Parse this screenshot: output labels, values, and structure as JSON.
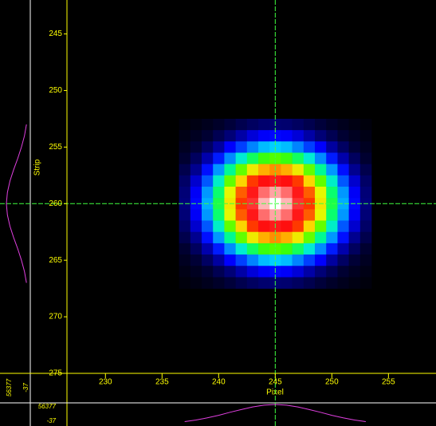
{
  "chart_data": {
    "type": "heatmap",
    "xlabel": "Pixel",
    "ylabel": "Strip",
    "x": [
      237,
      238,
      239,
      240,
      241,
      242,
      243,
      244,
      245,
      246,
      247,
      248,
      249,
      250,
      251,
      252,
      253
    ],
    "y": [
      253,
      254,
      255,
      256,
      257,
      258,
      259,
      260,
      261,
      262,
      263,
      264,
      265,
      266,
      267
    ],
    "z": [
      [
        1000,
        1600,
        2400,
        3400,
        4500,
        5500,
        6400,
        7100,
        7300,
        7100,
        6400,
        5500,
        4500,
        3400,
        2400,
        1600,
        1000
      ],
      [
        1700,
        2700,
        4100,
        5700,
        7500,
        9200,
        10800,
        11900,
        12300,
        11900,
        10800,
        9200,
        7500,
        5700,
        4100,
        2700,
        1700
      ],
      [
        2700,
        4300,
        6500,
        9000,
        12000,
        14700,
        17200,
        19000,
        19600,
        19000,
        17200,
        14700,
        12000,
        9000,
        6500,
        4300,
        2700
      ],
      [
        4000,
        6300,
        9400,
        13200,
        17400,
        21500,
        25200,
        27700,
        28600,
        27700,
        25200,
        21500,
        17400,
        13200,
        9400,
        6300,
        4000
      ],
      [
        5400,
        8500,
        12700,
        17800,
        23500,
        29000,
        34000,
        37400,
        38600,
        37400,
        34000,
        29000,
        23500,
        17800,
        12700,
        8500,
        5400
      ],
      [
        6700,
        10500,
        15700,
        21900,
        29000,
        35700,
        41900,
        46200,
        47600,
        46200,
        41900,
        35700,
        29000,
        21900,
        15700,
        10500,
        6700
      ],
      [
        7500,
        11800,
        17800,
        24700,
        32800,
        40400,
        47300,
        52200,
        53800,
        52200,
        47300,
        40400,
        32800,
        24700,
        17800,
        11800,
        7500
      ],
      [
        7800,
        12300,
        18500,
        25800,
        34200,
        42000,
        49300,
        54300,
        56377,
        54300,
        49300,
        42000,
        34200,
        25800,
        18500,
        12300,
        7800
      ],
      [
        7500,
        11800,
        17800,
        24700,
        32800,
        40400,
        47300,
        52200,
        53800,
        52200,
        47300,
        40400,
        32800,
        24700,
        17800,
        11800,
        7500
      ],
      [
        6700,
        10500,
        15700,
        21900,
        29000,
        35700,
        41900,
        46200,
        47600,
        46200,
        41900,
        35700,
        29000,
        21900,
        15700,
        10500,
        6700
      ],
      [
        5400,
        8500,
        12700,
        17800,
        23500,
        29000,
        34000,
        37400,
        38600,
        37400,
        34000,
        29000,
        23500,
        17800,
        12700,
        8500,
        5400
      ],
      [
        4000,
        6300,
        9400,
        13200,
        17400,
        21500,
        25200,
        27700,
        28600,
        27700,
        25200,
        21500,
        17400,
        13200,
        9400,
        6300,
        4000
      ],
      [
        2700,
        4300,
        6500,
        9000,
        12000,
        14700,
        17200,
        19000,
        19600,
        19000,
        17200,
        14700,
        12000,
        9000,
        6500,
        4300,
        2700
      ],
      [
        1700,
        2700,
        4100,
        5700,
        7500,
        9200,
        10800,
        11900,
        12300,
        11900,
        10800,
        9200,
        7500,
        5700,
        4100,
        2700,
        1700
      ],
      [
        1000,
        1600,
        2400,
        3400,
        4500,
        5500,
        6400,
        7100,
        7300,
        7100,
        6400,
        5500,
        4500,
        3400,
        2400,
        1600,
        1000
      ]
    ],
    "profile_range": [
      -37,
      56377
    ],
    "profile_color": "#e040e0",
    "cursor": [
      245,
      260
    ],
    "cursor_color": "#40ff40",
    "axis_color": "#ffff00",
    "colorscale": [
      "#000000",
      "#000030",
      "#000080",
      "#0000ff",
      "#0060ff",
      "#00e0ff",
      "#00ff80",
      "#40ff00",
      "#e0ff00",
      "#ffd000",
      "#ff6000",
      "#ff0000",
      "#ff2020",
      "#ff7070",
      "#ffffff"
    ],
    "xlim": [
      226.6,
      259.2
    ],
    "ylim": [
      242,
      275
    ],
    "xticks": [
      230,
      235,
      240,
      245,
      250,
      255
    ],
    "yticks": [
      245,
      250,
      255,
      260,
      265,
      270,
      275
    ]
  }
}
